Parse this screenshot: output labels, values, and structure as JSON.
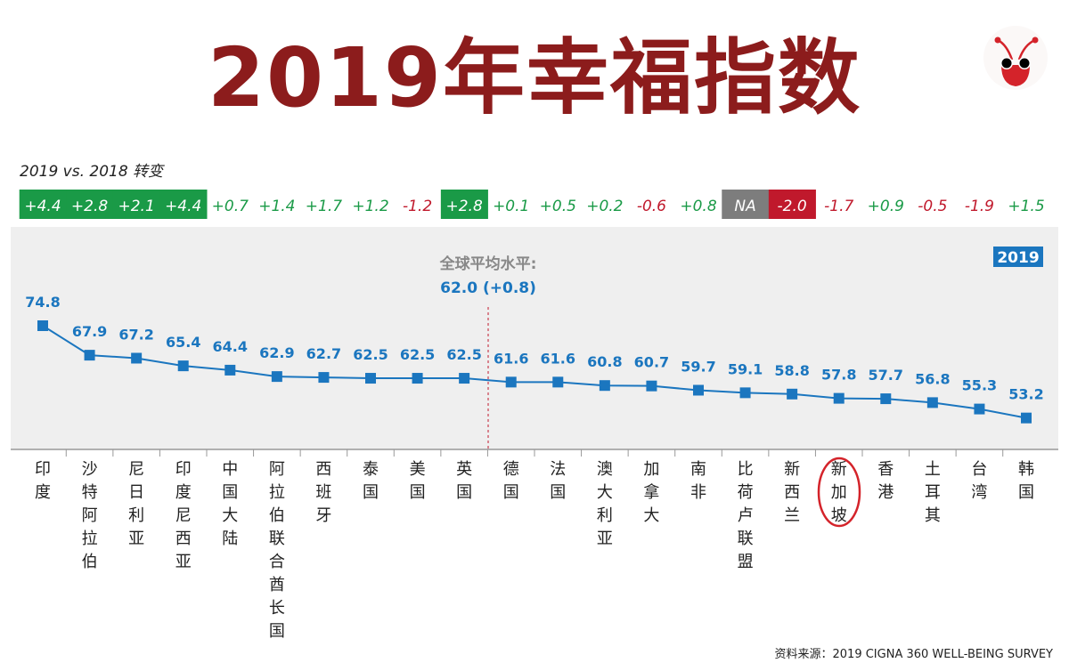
{
  "title": "2019年幸福指数",
  "change_label": "2019 vs. 2018 转变",
  "year_badge": "2019",
  "average": {
    "label": "全球平均水平:",
    "value": "62.0 (+0.8)"
  },
  "source": "资料来源：2019 CIGNA 360 WELL-BEING SURVEY",
  "colors": {
    "title": "#8c1c1c",
    "series": "#1b76bf",
    "positive": "#1a9a47",
    "negative": "#c0192c",
    "na": "#7d7d7d",
    "plot_bg": "#efefef"
  },
  "chart_data": {
    "type": "line",
    "title": "2019年幸福指数",
    "xlabel": "",
    "ylabel": "",
    "ylim": [
      50,
      78
    ],
    "grid": false,
    "highlighted_category": "新加坡",
    "reference_line": {
      "label": "全球平均水平",
      "value": 62.0,
      "change": "+0.8",
      "position_between": [
        "英国",
        "德国"
      ]
    },
    "categories": [
      "印度",
      "沙特阿拉伯",
      "尼日利亚",
      "印度尼西亚",
      "中国大陆",
      "阿拉伯联合酋长国",
      "西班牙",
      "泰国",
      "美国",
      "英国",
      "德国",
      "法国",
      "澳大利亚",
      "加拿大",
      "南非",
      "比荷卢联盟",
      "新西兰",
      "新加坡",
      "香港",
      "土耳其",
      "台湾",
      "韩国"
    ],
    "series": [
      {
        "name": "2019",
        "values": [
          74.8,
          67.9,
          67.2,
          65.4,
          64.4,
          62.9,
          62.7,
          62.5,
          62.5,
          62.5,
          61.6,
          61.6,
          60.8,
          60.7,
          59.7,
          59.1,
          58.8,
          57.8,
          57.7,
          56.8,
          55.3,
          53.2
        ]
      }
    ],
    "changes": [
      "+4.4",
      "+2.8",
      "+2.1",
      "+4.4",
      "+0.7",
      "+1.4",
      "+1.7",
      "+1.2",
      "-1.2",
      "+2.8",
      "+0.1",
      "+0.5",
      "+0.2",
      "-0.6",
      "+0.8",
      "NA",
      "-2.0",
      "-1.7",
      "+0.9",
      "-0.5",
      "-1.9",
      "+1.5"
    ],
    "change_highlight": [
      "positive",
      "positive",
      "positive",
      "positive",
      "",
      "",
      "",
      "",
      "",
      "positive",
      "",
      "",
      "",
      "",
      "",
      "na",
      "negative",
      "",
      "",
      "",
      "",
      ""
    ]
  }
}
